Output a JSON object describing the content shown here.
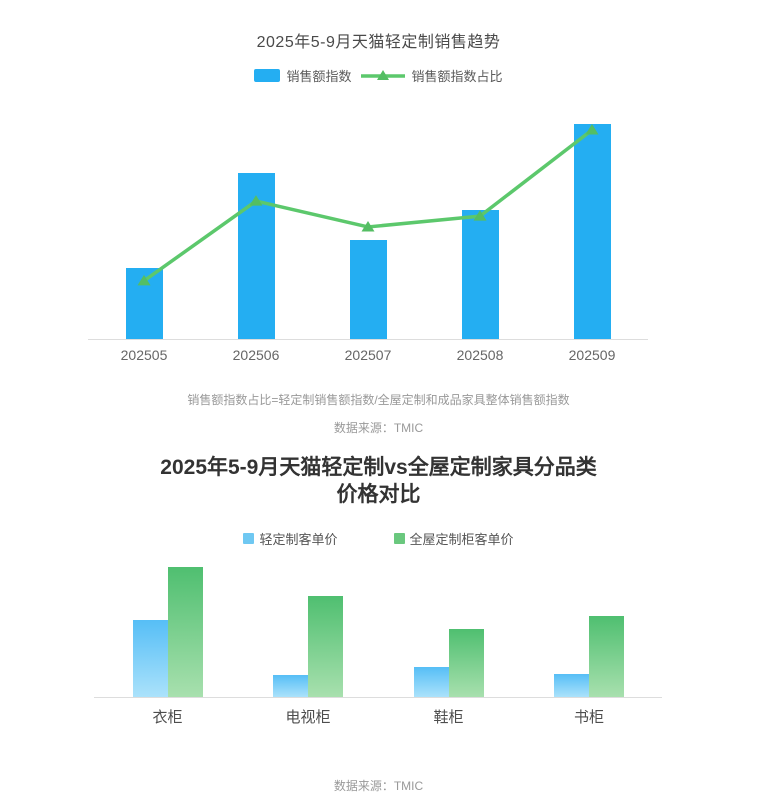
{
  "chart_data": [
    {
      "type": "bar+line",
      "title": "2025年5-9月天猫轻定制销售趋势",
      "categories": [
        "202505",
        "202506",
        "202507",
        "202508",
        "202509"
      ],
      "series": [
        {
          "name": "销售额指数",
          "type": "bar",
          "values": [
            33,
            77,
            46,
            60,
            100
          ],
          "color": "#24AEF2"
        },
        {
          "name": "销售额指数占比",
          "type": "line",
          "values": [
            27,
            64,
            52,
            57,
            97
          ],
          "color": "#5CC86C",
          "marker": "triangle"
        }
      ],
      "ylim": [
        0,
        111
      ],
      "grid": false,
      "legend_position": "top",
      "value_note": "relative index estimates, no value axis shown",
      "footnote": "销售额指数占比=轻定制销售额指数/全屋定制和成品家具整体销售额指数",
      "source": "数据来源：TMIC"
    },
    {
      "type": "bar",
      "title_line1": "2025年5-9月天猫轻定制vs全屋定制家具分品类",
      "title_line2": "价格对比",
      "categories": [
        "衣柜",
        "电视柜",
        "鞋柜",
        "书柜"
      ],
      "series": [
        {
          "name": "轻定制客单价",
          "values": [
            59,
            17,
            23,
            18
          ],
          "color_top": "#56BEF6",
          "color_bottom": "#ABE2FB",
          "legend_color": "#6FC8F2"
        },
        {
          "name": "全屋定制柜客单价",
          "values": [
            100,
            78,
            52,
            62
          ],
          "color_top": "#4FBF70",
          "color_bottom": "#A8E0AE",
          "legend_color": "#6AC87E"
        }
      ],
      "ylim": [
        0,
        105
      ],
      "grid": false,
      "legend_position": "top",
      "value_note": "relative price estimates, no value axis shown",
      "source": "数据来源：TMIC"
    }
  ],
  "colors": {
    "bar_blue": "#24AEF2",
    "line_green": "#5CC86C",
    "axis": "#dddddd",
    "text_gray": "#999999"
  }
}
